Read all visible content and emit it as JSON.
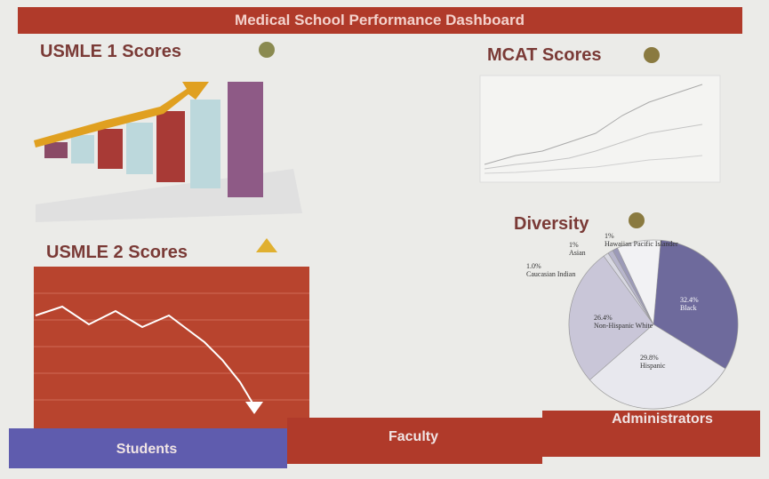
{
  "header": {
    "title": "Medical School Performance Dashboard"
  },
  "panels": {
    "usmle1": {
      "title": "USMLE 1 Scores"
    },
    "mcat": {
      "title": "MCAT Scores"
    },
    "usmle2": {
      "title": "USMLE 2 Scores"
    }
  },
  "diversity": {
    "title": "Diversity",
    "type": "pie",
    "categories": [
      "Black",
      "Hispanic",
      "Non-Hispanic White",
      "Caucasian Indian",
      "Asian",
      "Hawaiian Pacific Islander"
    ],
    "values": [
      32.4,
      29.8,
      26.4,
      1.0,
      1,
      1
    ],
    "value_labels": [
      "32.4%",
      "29.8%",
      "26.4%",
      "1.0%",
      "1%",
      "1%"
    ],
    "colors": [
      "#6e6a9c",
      "#e8e8ee",
      "#c9c6d8",
      "#d8d8e2",
      "#b8b6cc",
      "#9c9ab8"
    ]
  },
  "nav": {
    "tabs": [
      "Students",
      "Faculty",
      "Administrators"
    ]
  }
}
